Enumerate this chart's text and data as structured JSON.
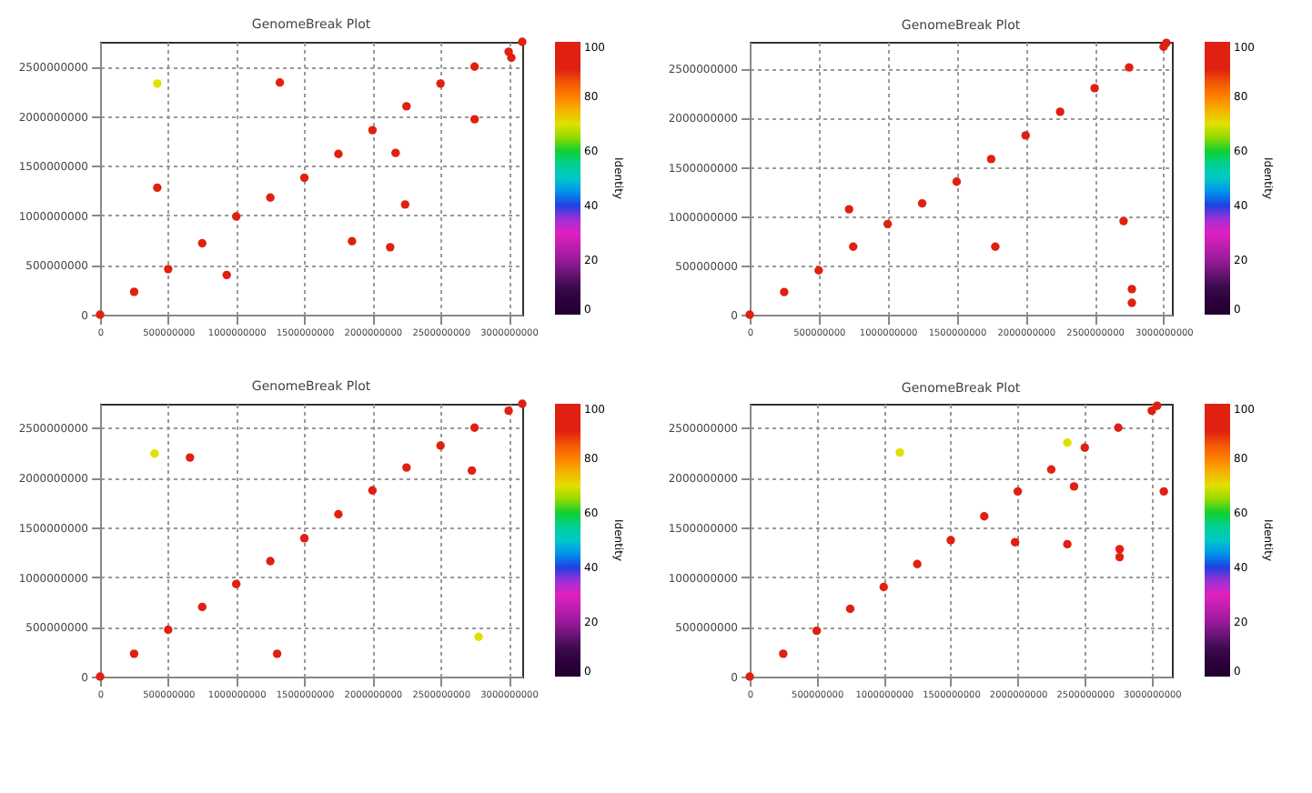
{
  "chart_data": [
    {
      "type": "scatter",
      "title": "GenomeBreak Plot",
      "clabel": "Identity",
      "xlim": [
        0,
        3100000000
      ],
      "ylim": [
        0,
        2750000000
      ],
      "xticks": [
        0,
        500000000,
        1000000000,
        1500000000,
        2000000000,
        2500000000,
        3000000000
      ],
      "yticks": [
        0,
        500000000,
        1000000000,
        1500000000,
        2000000000,
        2500000000
      ],
      "clim": [
        0,
        100
      ],
      "cticks": [
        0,
        20,
        40,
        60,
        80,
        100
      ],
      "grid": true,
      "series": [
        {
          "x": [
            0,
            250000000,
            500000000,
            750000000,
            1000000000,
            1250000000,
            1500000000,
            1750000000,
            2000000000,
            2250000000,
            2500000000,
            2750000000,
            3000000000,
            3100000000,
            420000000,
            420000000,
            1320000000,
            1850000000,
            2130000000,
            2240000000,
            2750000000,
            3020000000,
            930000000,
            2170000000
          ],
          "values": [
            0,
            230000000,
            460000000,
            720000000,
            990000000,
            1180000000,
            1380000000,
            1620000000,
            1860000000,
            2100000000,
            2330000000,
            2500000000,
            2650000000,
            2750000000,
            2330000000,
            1280000000,
            2340000000,
            740000000,
            680000000,
            1110000000,
            1970000000,
            2590000000,
            400000000,
            1630000000
          ],
          "cvalues": [
            100,
            100,
            100,
            100,
            100,
            100,
            100,
            100,
            100,
            100,
            100,
            100,
            100,
            100,
            70,
            95,
            95,
            95,
            95,
            95,
            95,
            95,
            95,
            95
          ]
        }
      ]
    },
    {
      "type": "scatter",
      "title": "GenomeBreak Plot",
      "clabel": "Identity",
      "xlim": [
        0,
        3060000000
      ],
      "ylim": [
        0,
        2770000000
      ],
      "xticks": [
        0,
        500000000,
        1000000000,
        1500000000,
        2000000000,
        2500000000,
        3000000000
      ],
      "yticks": [
        0,
        500000000,
        1000000000,
        1500000000,
        2000000000,
        2500000000
      ],
      "clim": [
        0,
        100
      ],
      "cticks": [
        0,
        20,
        40,
        60,
        80,
        100
      ],
      "grid": true,
      "series": [
        {
          "x": [
            0,
            250000000,
            500000000,
            750000000,
            1000000000,
            1250000000,
            1500000000,
            1750000000,
            2000000000,
            2250000000,
            2500000000,
            2750000000,
            3000000000,
            3020000000,
            720000000,
            1780000000,
            2770000000,
            2770000000,
            2710000000
          ],
          "values": [
            0,
            230000000,
            450000000,
            690000000,
            920000000,
            1130000000,
            1350000000,
            1580000000,
            1820000000,
            2060000000,
            2300000000,
            2510000000,
            2720000000,
            2760000000,
            1070000000,
            690000000,
            260000000,
            120000000,
            950000000
          ],
          "cvalues": [
            100,
            100,
            100,
            100,
            100,
            100,
            100,
            100,
            100,
            100,
            100,
            100,
            100,
            100,
            95,
            95,
            95,
            95,
            95
          ]
        }
      ]
    },
    {
      "type": "scatter",
      "title": "GenomeBreak Plot",
      "clabel": "Identity",
      "xlim": [
        0,
        3100000000
      ],
      "ylim": [
        0,
        2740000000
      ],
      "xticks": [
        0,
        500000000,
        1000000000,
        1500000000,
        2000000000,
        2500000000,
        3000000000
      ],
      "yticks": [
        0,
        500000000,
        1000000000,
        1500000000,
        2000000000,
        2500000000
      ],
      "clim": [
        0,
        100
      ],
      "cticks": [
        0,
        20,
        40,
        60,
        80,
        100
      ],
      "grid": true,
      "series": [
        {
          "x": [
            0,
            250000000,
            500000000,
            750000000,
            1000000000,
            1250000000,
            1500000000,
            1750000000,
            2000000000,
            2250000000,
            2500000000,
            2750000000,
            3000000000,
            3100000000,
            400000000,
            660000000,
            2730000000,
            2780000000,
            1300000000
          ],
          "values": [
            0,
            230000000,
            470000000,
            700000000,
            930000000,
            1160000000,
            1390000000,
            1630000000,
            1870000000,
            2100000000,
            2320000000,
            2500000000,
            2670000000,
            2740000000,
            2240000000,
            2200000000,
            2070000000,
            400000000,
            230000000
          ],
          "cvalues": [
            100,
            100,
            100,
            100,
            100,
            100,
            100,
            100,
            100,
            100,
            100,
            100,
            100,
            100,
            70,
            90,
            90,
            70,
            90
          ]
        }
      ]
    },
    {
      "type": "scatter",
      "title": "GenomeBreak Plot",
      "clabel": "Identity",
      "xlim": [
        0,
        3150000000
      ],
      "ylim": [
        0,
        2740000000
      ],
      "xticks": [
        0,
        500000000,
        1000000000,
        1500000000,
        2000000000,
        2500000000,
        3000000000
      ],
      "yticks": [
        0,
        500000000,
        1000000000,
        1500000000,
        2000000000,
        2500000000
      ],
      "clim": [
        0,
        100
      ],
      "cticks": [
        0,
        20,
        40,
        60,
        80,
        100
      ],
      "grid": true,
      "series": [
        {
          "x": [
            0,
            250000000,
            500000000,
            750000000,
            1000000000,
            1250000000,
            1500000000,
            1750000000,
            2000000000,
            2250000000,
            2500000000,
            2750000000,
            3000000000,
            3040000000,
            2420000000,
            2760000000,
            2760000000,
            2370000000,
            1980000000,
            2370000000,
            1120000000,
            3090000000
          ],
          "values": [
            0,
            230000000,
            460000000,
            680000000,
            900000000,
            1130000000,
            1370000000,
            1610000000,
            1860000000,
            2080000000,
            2300000000,
            2500000000,
            2670000000,
            2720000000,
            1910000000,
            1280000000,
            1200000000,
            1330000000,
            1350000000,
            2350000000,
            2250000000,
            1860000000
          ],
          "cvalues": [
            100,
            100,
            100,
            100,
            100,
            100,
            100,
            100,
            100,
            100,
            100,
            100,
            100,
            100,
            95,
            95,
            95,
            95,
            95,
            70,
            70,
            95
          ]
        }
      ]
    }
  ]
}
